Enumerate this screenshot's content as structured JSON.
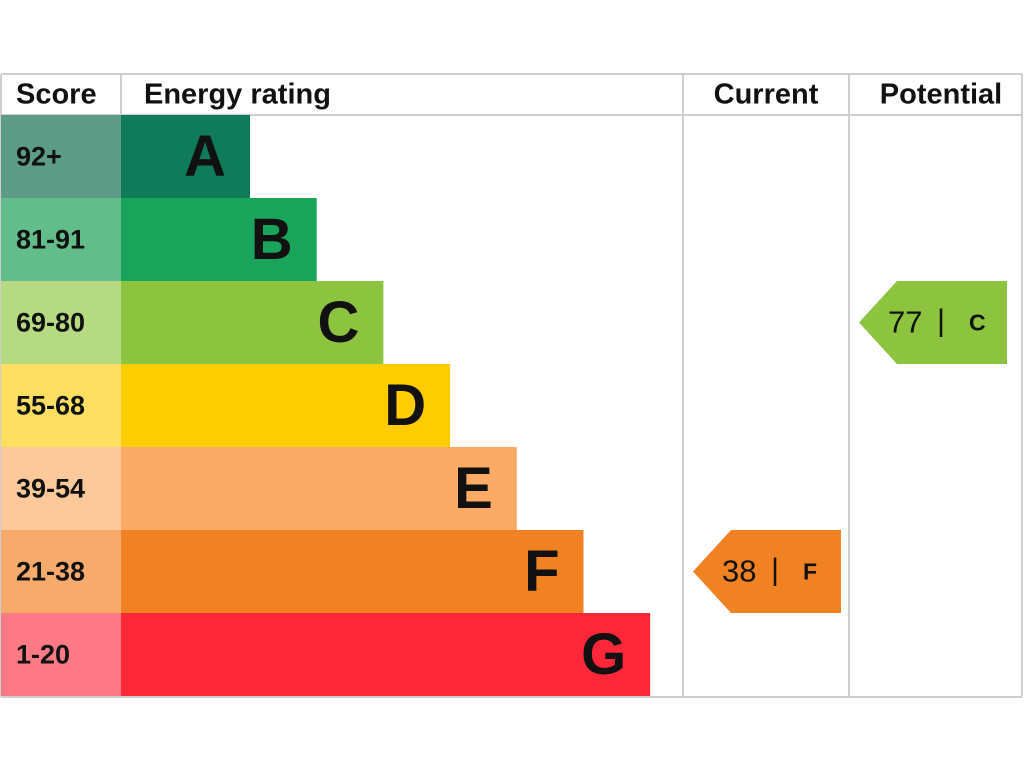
{
  "header": {
    "score": "Score",
    "rating": "Energy rating",
    "current": "Current",
    "potential": "Potential"
  },
  "rows": [
    {
      "score": "92+",
      "band": "A",
      "color": "#0f7b5b",
      "score_color": "#5c9c86"
    },
    {
      "score": "81-91",
      "band": "B",
      "color": "#1aa35a",
      "score_color": "#62bd8a"
    },
    {
      "score": "69-80",
      "band": "C",
      "color": "#8cc43f",
      "score_color": "#b6da82"
    },
    {
      "score": "55-68",
      "band": "D",
      "color": "#ffcc00",
      "score_color": "#ffdf62"
    },
    {
      "score": "39-54",
      "band": "E",
      "color": "#fcab66",
      "score_color": "#fdc89a"
    },
    {
      "score": "21-38",
      "band": "F",
      "color": "#f18224",
      "score_color": "#f6aa6b"
    },
    {
      "score": "1-20",
      "band": "G",
      "color": "#fe2639",
      "score_color": "#fc7985"
    }
  ],
  "current": {
    "value": 38,
    "separator": "|",
    "band": "F"
  },
  "potential": {
    "value": 77,
    "separator": "|",
    "band": "C"
  }
}
